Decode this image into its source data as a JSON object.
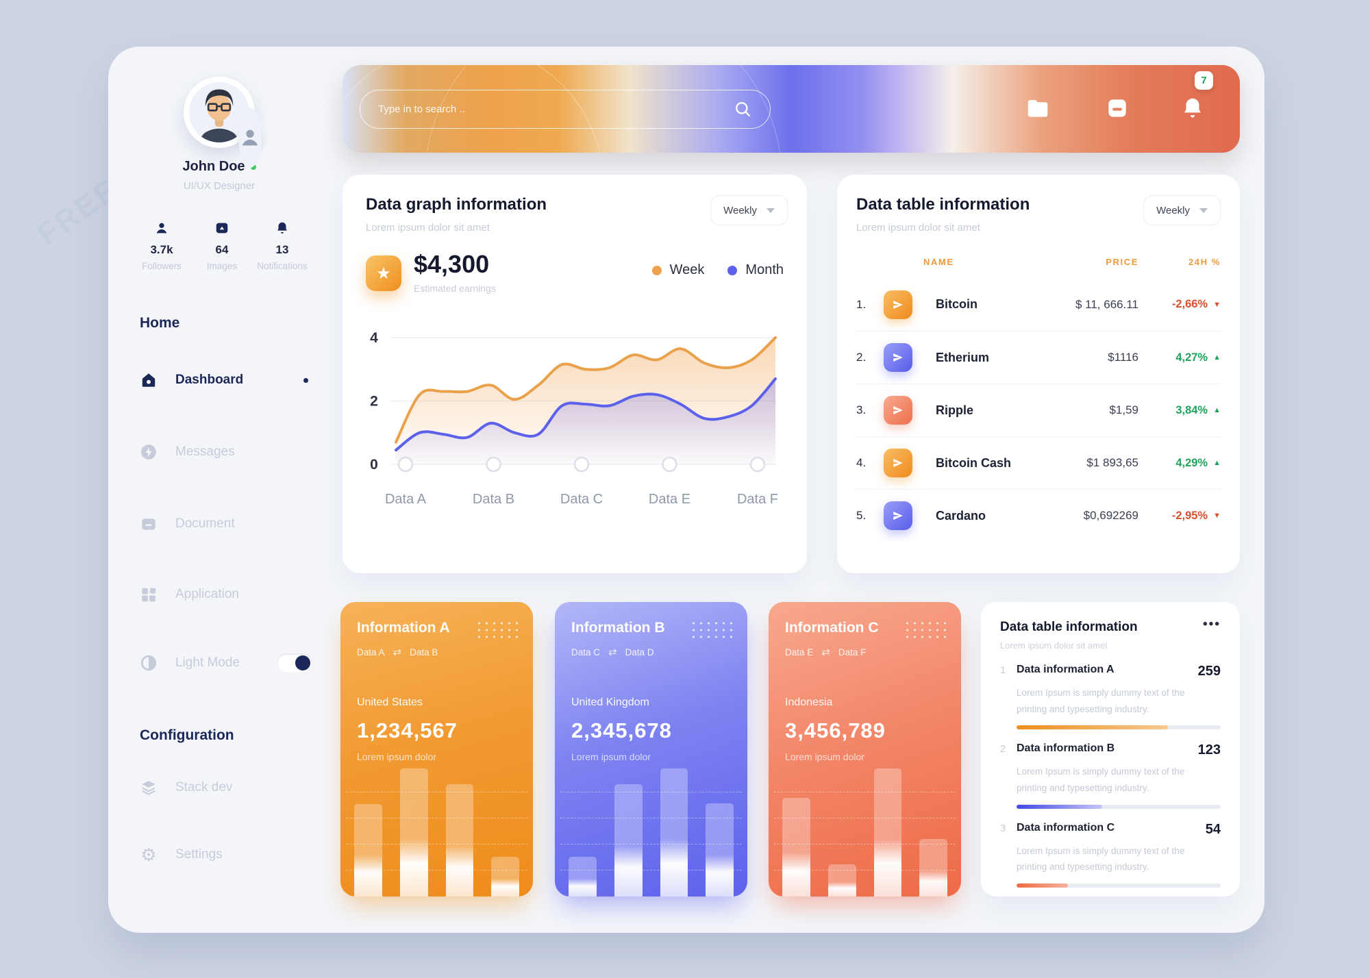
{
  "watermark": "FREEPIK",
  "sidebar": {
    "profile": {
      "name": "John Doe",
      "role": "UI/UX Designer"
    },
    "stats": [
      {
        "icon": "user-icon",
        "value": "3.7k",
        "label": "Followers"
      },
      {
        "icon": "image-icon",
        "value": "64",
        "label": "Images"
      },
      {
        "icon": "bell-icon",
        "value": "13",
        "label": "Notifications"
      }
    ],
    "sections": [
      {
        "title": "Home",
        "items": [
          {
            "icon": "home-icon",
            "label": "Dashboard"
          },
          {
            "icon": "lightning-icon",
            "label": "Messages"
          },
          {
            "icon": "document-icon",
            "label": "Document"
          },
          {
            "icon": "grid-icon",
            "label": "Application"
          },
          {
            "icon": "contrast-icon",
            "label": "Light Mode"
          }
        ]
      },
      {
        "title": "Configuration",
        "items": [
          {
            "icon": "layers-icon",
            "label": "Stack dev"
          },
          {
            "icon": "gear-icon",
            "label": "Settings"
          }
        ]
      }
    ]
  },
  "header": {
    "search_placeholder": "Type in to search ..",
    "notification_count": "7"
  },
  "graph_card": {
    "title": "Data graph information",
    "subtitle": "Lorem ipsum dolor sit amet",
    "period": "Weekly",
    "amount": "$4,300",
    "amount_caption": "Estimated earnings",
    "legend": [
      {
        "label": "Week",
        "color": "#E9A24B"
      },
      {
        "label": "Month",
        "color": "#5B61EA"
      }
    ]
  },
  "chart_data": {
    "type": "line",
    "title": "Data graph information",
    "x_labels": [
      "Data A",
      "Data B",
      "Data C",
      "Data E",
      "Data F"
    ],
    "yticks": [
      0,
      2,
      4
    ],
    "ylim": [
      0,
      4
    ],
    "grid": true,
    "legend_position": "top-right",
    "series": [
      {
        "name": "Week",
        "color": "#E9A24B",
        "values": [
          0.7,
          2.2,
          2.3,
          2.3,
          2.5,
          2.05,
          2.5,
          3.15,
          3.0,
          3.05,
          3.45,
          3.3,
          3.65,
          3.2,
          3.05,
          3.3,
          4.0
        ]
      },
      {
        "name": "Month",
        "color": "#5B61EA",
        "values": [
          0.45,
          1.0,
          0.95,
          0.85,
          1.3,
          1.0,
          0.95,
          1.85,
          1.9,
          1.85,
          2.15,
          2.2,
          1.9,
          1.45,
          1.5,
          1.85,
          2.7
        ]
      }
    ]
  },
  "table_card": {
    "title": "Data table information",
    "subtitle": "Lorem ipsum dolor sit amet",
    "period": "Weekly",
    "columns": [
      "NAME",
      "PRICE",
      "24H %"
    ],
    "rows": [
      {
        "rank": "1.",
        "name": "Bitcoin",
        "price": "$ 11, 666.11",
        "change": "-2,66%",
        "dir": "down",
        "theme": "orange"
      },
      {
        "rank": "2.",
        "name": "Etherium",
        "price": "$1116",
        "change": "4,27%",
        "dir": "up",
        "theme": "blue"
      },
      {
        "rank": "3.",
        "name": "Ripple",
        "price": "$1,59",
        "change": "3,84%",
        "dir": "up",
        "theme": "salmon"
      },
      {
        "rank": "4.",
        "name": "Bitcoin Cash",
        "price": "$1 893,65",
        "change": "4,29%",
        "dir": "up",
        "theme": "orange"
      },
      {
        "rank": "5.",
        "name": "Cardano",
        "price": "$0,692269",
        "change": "-2,95%",
        "dir": "down",
        "theme": "blue"
      }
    ]
  },
  "info_cards": [
    {
      "title": "Information A",
      "pair_a": "Data A",
      "pair_b": "Data B",
      "country": "United States",
      "value": "1,234,567",
      "caption": "Lorem ipsum dolor",
      "theme": "orange",
      "bars": [
        0.69,
        0.96,
        0.84,
        0.3
      ]
    },
    {
      "title": "Information B",
      "pair_a": "Data C",
      "pair_b": "Data D",
      "country": "United Kingdom",
      "value": "2,345,678",
      "caption": "Lorem ipsum dolor",
      "theme": "blue",
      "bars": [
        0.3,
        0.84,
        0.96,
        0.7
      ]
    },
    {
      "title": "Information C",
      "pair_a": "Data E",
      "pair_b": "Data F",
      "country": "Indonesia",
      "value": "3,456,789",
      "caption": "Lorem ipsum dolor",
      "theme": "salmon",
      "bars": [
        0.74,
        0.24,
        0.96,
        0.43
      ]
    }
  ],
  "summary_card": {
    "title": "Data table information",
    "subtitle": "Lorem ipsum dolor sit amet",
    "items": [
      {
        "index": "1",
        "title": "Data information A",
        "value": "259",
        "desc": "Lorem Ipsum is simply dummy text of the printing and typesetting industry.",
        "progress": 74,
        "theme": "orange"
      },
      {
        "index": "2",
        "title": "Data information B",
        "value": "123",
        "desc": "Lorem Ipsum is simply dummy text of the printing and typesetting industry.",
        "progress": 42,
        "theme": "blue"
      },
      {
        "index": "3",
        "title": "Data information C",
        "value": "54",
        "desc": "Lorem Ipsum is simply dummy text of the printing and typesetting industry.",
        "progress": 25,
        "theme": "salmon"
      }
    ]
  }
}
